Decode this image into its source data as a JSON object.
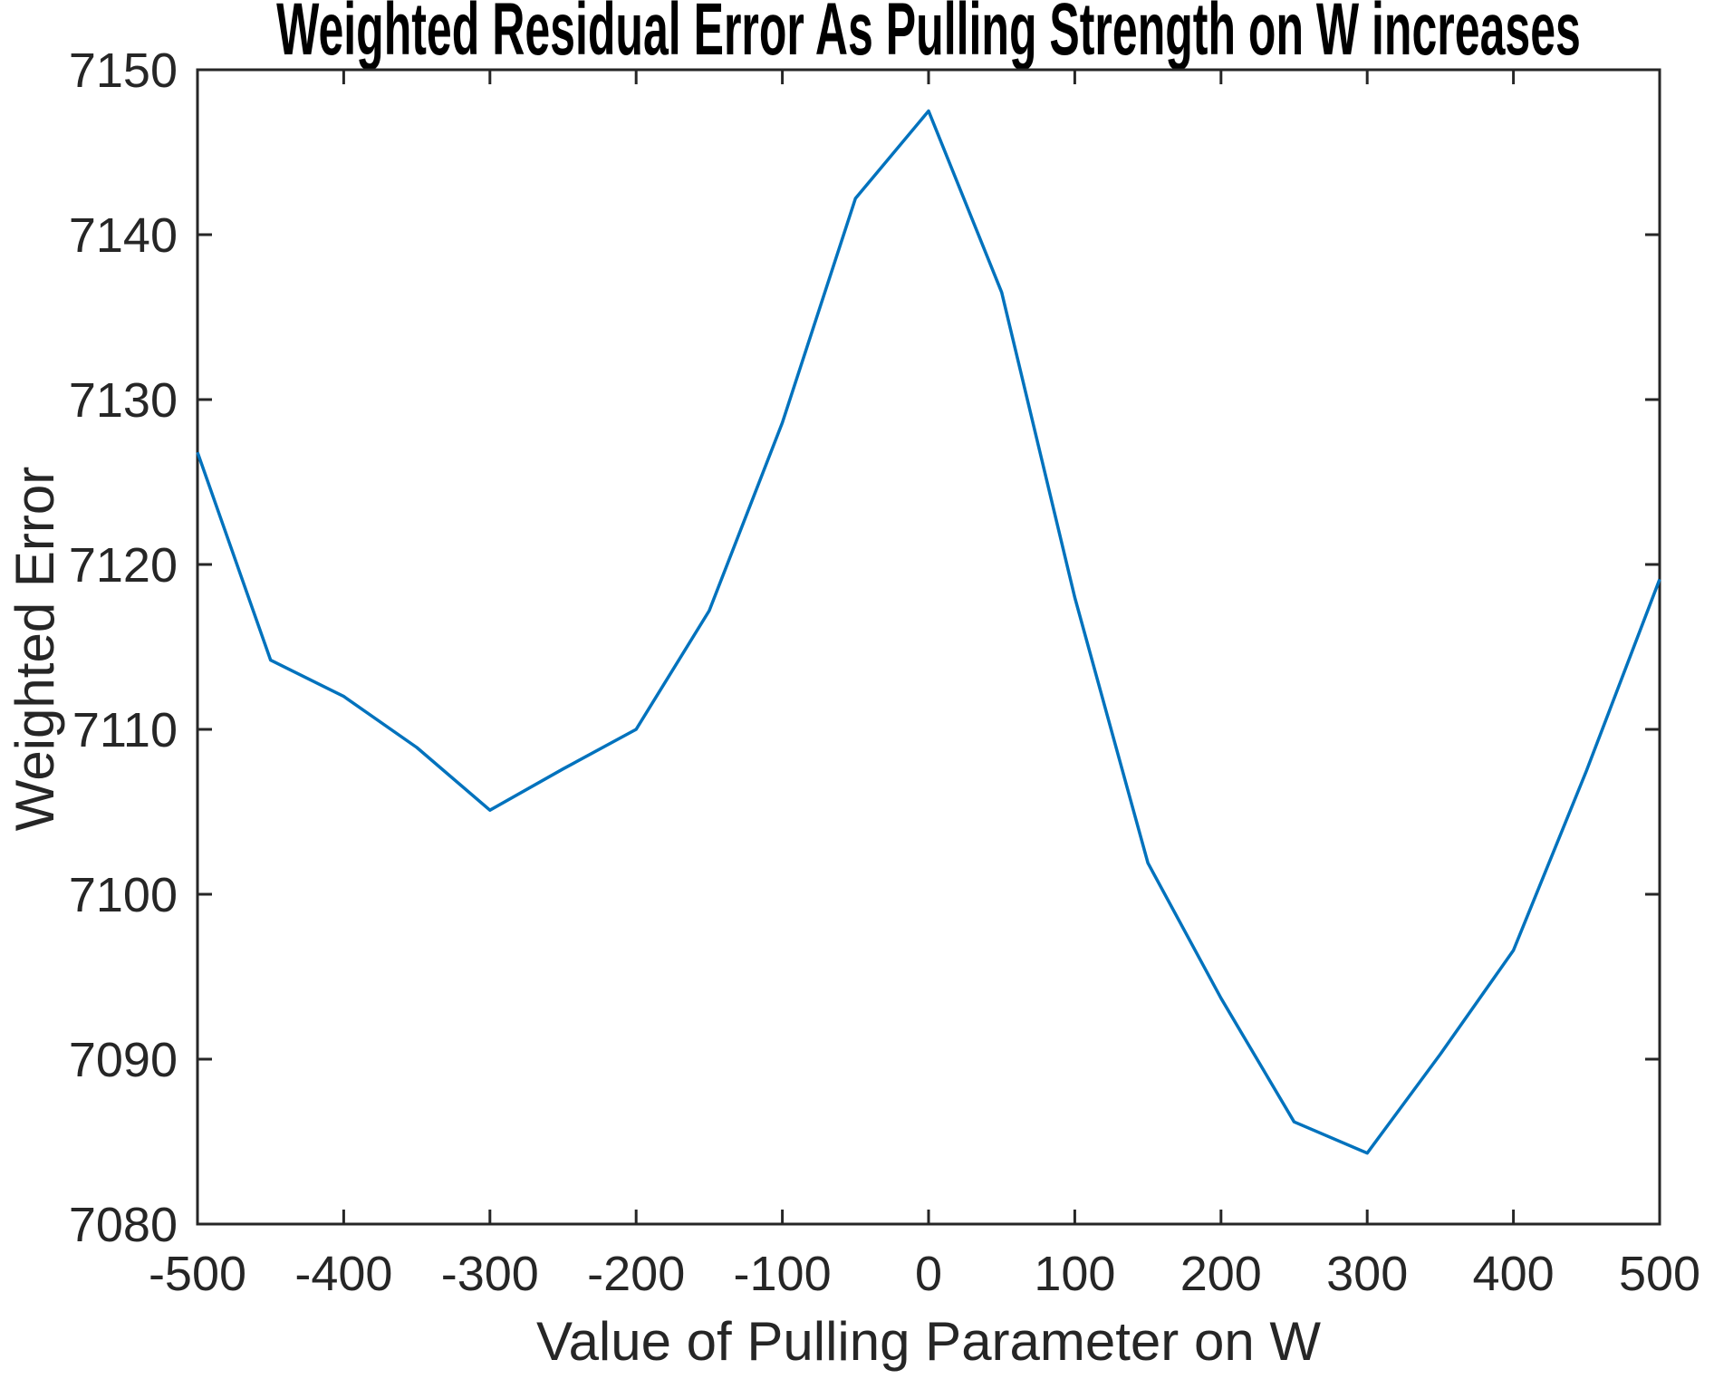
{
  "chart_data": {
    "type": "line",
    "title": "Weighted Residual Error As Pulling Strength on W increases",
    "xlabel": "Value of Pulling Parameter on W",
    "ylabel": "Weighted Error",
    "x": [
      -500,
      -450,
      -400,
      -350,
      -300,
      -250,
      -200,
      -150,
      -100,
      -50,
      0,
      50,
      100,
      150,
      200,
      250,
      300,
      350,
      400,
      450,
      500
    ],
    "y": [
      7126.8,
      7114.2,
      7112.0,
      7108.9,
      7105.1,
      7107.6,
      7110.0,
      7117.2,
      7128.6,
      7142.2,
      7147.5,
      7136.5,
      7118.0,
      7101.9,
      7093.7,
      7086.2,
      7084.3,
      7090.3,
      7096.6,
      7107.5,
      7119.1
    ],
    "xlim": [
      -500,
      500
    ],
    "ylim": [
      7080,
      7150
    ],
    "x_ticks": [
      -500,
      -400,
      -300,
      -200,
      -100,
      0,
      100,
      200,
      300,
      400,
      500
    ],
    "y_ticks": [
      7080,
      7090,
      7100,
      7110,
      7120,
      7130,
      7140,
      7150
    ],
    "grid": false,
    "legend_position": "none",
    "line_color": "#0072BD",
    "axis_color": "#262626",
    "title_color": "#000000",
    "background_color": "#FFFFFF"
  }
}
